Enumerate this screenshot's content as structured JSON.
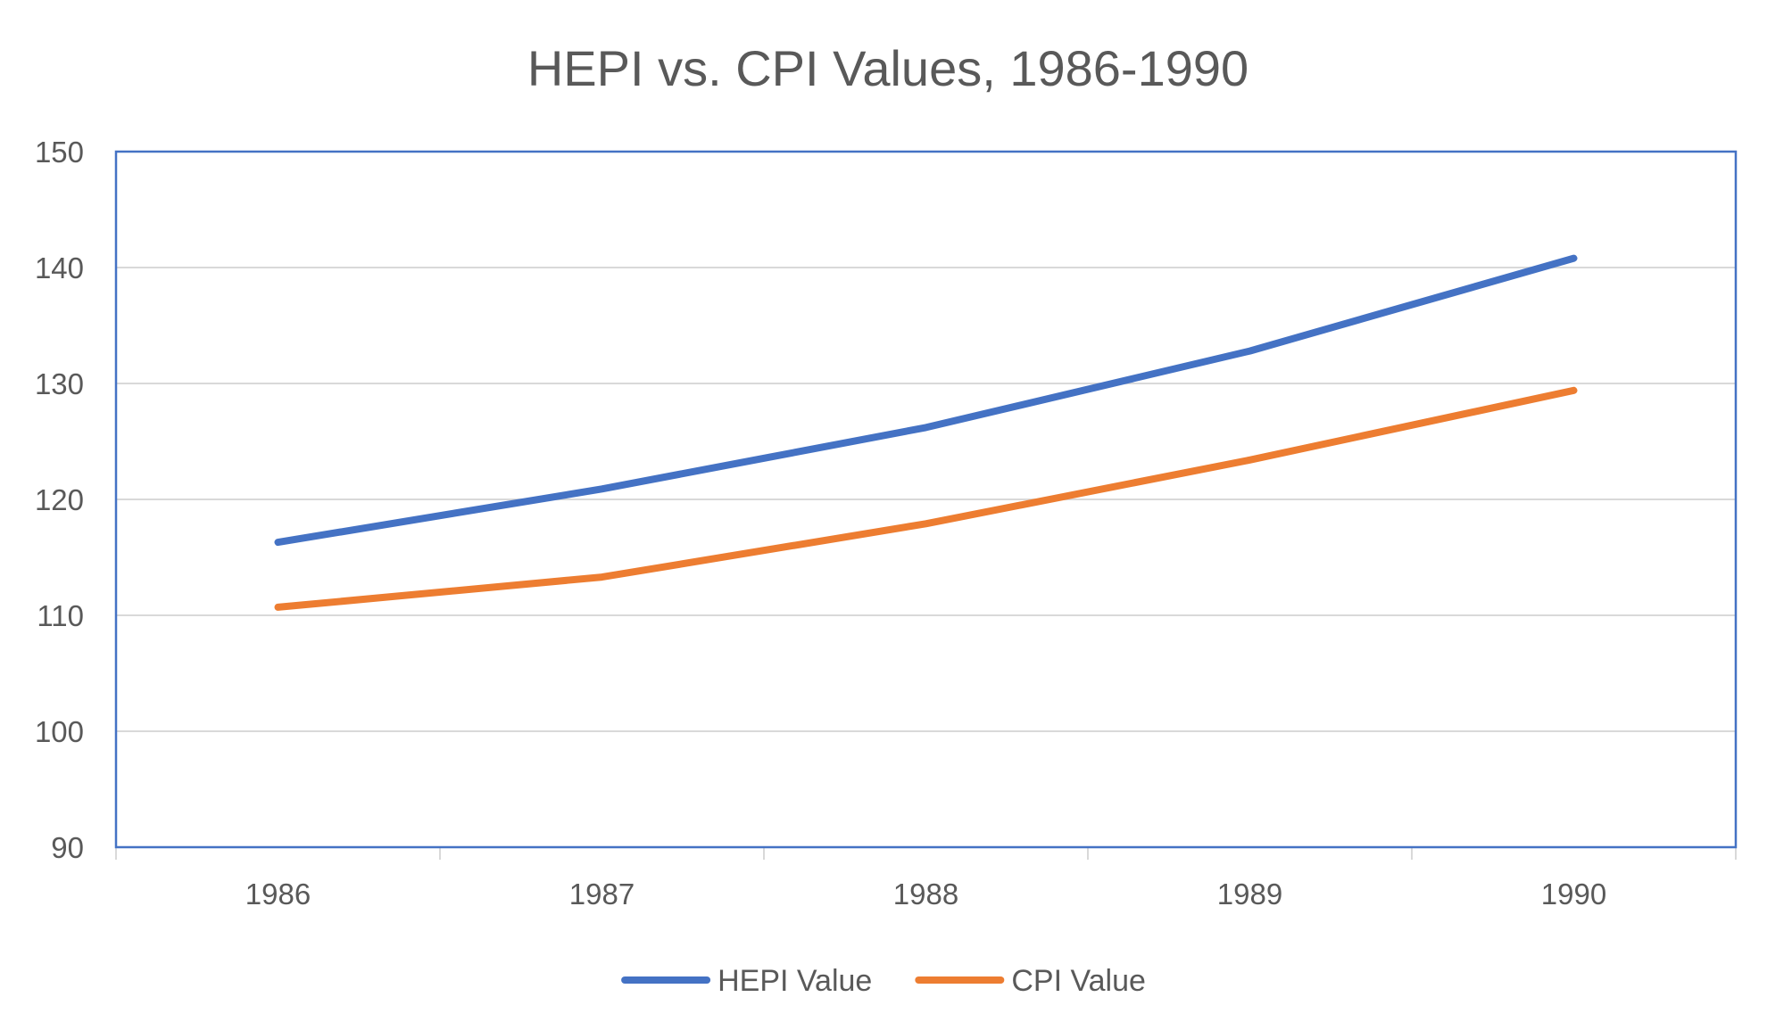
{
  "chart_data": {
    "type": "line",
    "title": "HEPI vs. CPI Values, 1986-1990",
    "xlabel": "",
    "ylabel": "",
    "categories": [
      "1986",
      "1987",
      "1988",
      "1989",
      "1990"
    ],
    "ylim": [
      90,
      150
    ],
    "y_ticks": [
      "90",
      "100",
      "110",
      "120",
      "130",
      "140",
      "150"
    ],
    "grid": true,
    "legend_position": "bottom",
    "series": [
      {
        "name": "HEPI Value",
        "color": "#4472C4",
        "values": [
          116.3,
          120.9,
          126.2,
          132.8,
          140.8
        ]
      },
      {
        "name": "CPI Value",
        "color": "#ED7D31",
        "values": [
          110.7,
          113.3,
          117.9,
          123.4,
          129.4
        ]
      }
    ]
  }
}
